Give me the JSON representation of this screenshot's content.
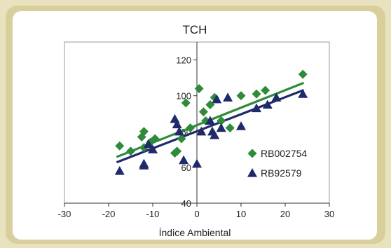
{
  "chart_data": {
    "type": "scatter",
    "title": "TCH",
    "xlabel": "Índice Ambiental",
    "ylabel": "",
    "xlim": [
      -30,
      30
    ],
    "ylim": [
      40,
      130
    ],
    "xticks": [
      "-30",
      "-20",
      "-10",
      "0",
      "10",
      "20",
      "30"
    ],
    "yticks": [
      "40",
      "60",
      "80",
      "100",
      "120"
    ],
    "grid": false,
    "legend_position": "right",
    "series": [
      {
        "name": "RB002754",
        "marker": "diamond",
        "color": "#2e8b3a",
        "trend": {
          "x": [
            -18,
            24
          ],
          "y": [
            66,
            107
          ]
        },
        "points": [
          [
            -17.5,
            72
          ],
          [
            -15,
            69
          ],
          [
            -12.5,
            77
          ],
          [
            -12,
            80
          ],
          [
            -12,
            71
          ],
          [
            -10.5,
            74
          ],
          [
            -9.5,
            76
          ],
          [
            -5,
            68
          ],
          [
            -4.5,
            69
          ],
          [
            -3.5,
            76
          ],
          [
            -2.5,
            96
          ],
          [
            -1.5,
            82
          ],
          [
            0.5,
            104
          ],
          [
            1.5,
            91
          ],
          [
            2,
            86
          ],
          [
            3,
            95
          ],
          [
            4,
            99
          ],
          [
            5.5,
            86
          ],
          [
            7.5,
            82
          ],
          [
            10,
            100
          ],
          [
            13.5,
            101
          ],
          [
            15.5,
            103
          ],
          [
            24,
            112
          ]
        ]
      },
      {
        "name": "RB92579",
        "marker": "triangle",
        "color": "#1f2a6b",
        "trend": {
          "x": [
            -18,
            24
          ],
          "y": [
            63,
            103
          ]
        },
        "points": [
          [
            -17.5,
            58
          ],
          [
            -12,
            62
          ],
          [
            -12,
            61
          ],
          [
            -11,
            73
          ],
          [
            -10,
            70
          ],
          [
            -5,
            87
          ],
          [
            -4.5,
            84
          ],
          [
            -4,
            80
          ],
          [
            -3,
            64
          ],
          [
            0,
            62
          ],
          [
            1,
            80
          ],
          [
            3,
            86
          ],
          [
            3.5,
            80
          ],
          [
            4,
            78
          ],
          [
            4.5,
            98
          ],
          [
            5.5,
            82
          ],
          [
            7,
            99
          ],
          [
            10,
            83
          ],
          [
            13.5,
            93
          ],
          [
            16,
            95
          ],
          [
            18,
            99
          ],
          [
            24,
            101
          ]
        ]
      }
    ]
  }
}
